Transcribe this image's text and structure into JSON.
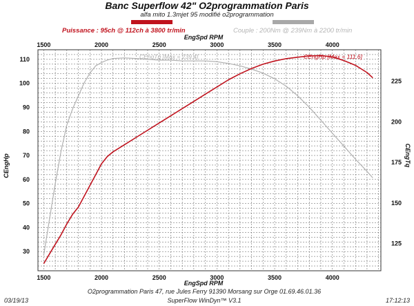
{
  "header": {
    "title": "Banc Superflow 42\" O2programmation Paris",
    "subtitle": "alfa mito 1.3mjet 95 modifié o2programmation",
    "legend_power": "Puissance : 95ch @ 112ch à 3800 tr/min",
    "legend_torque": "Couple : 200Nm @ 239Nm à 2200 tr/min"
  },
  "footer": {
    "address": "O2programmation Paris 47, rue Jules Ferry 91390 Morsang sur Orge 01.69.46.01.36",
    "software": "SuperFlow WinDyn™ V3.1",
    "date": "03/19/13",
    "time": "17:12:13"
  },
  "colors": {
    "power": "#c0121d",
    "torque": "#b0b0b0",
    "legend_power_swatch": "#c0121d",
    "legend_torque_swatch": "#a8a8a8",
    "grid": "#555555"
  },
  "chart_data": {
    "type": "line",
    "x_axis_label_top": "EngSpd RPM",
    "x_axis_label_bottom": "EngSpd RPM",
    "y_left_label": "CEngHp",
    "y_right_label": "CEngTq",
    "xlim": [
      1450,
      4420
    ],
    "x_ticks": [
      1500,
      2000,
      2500,
      3000,
      3500,
      4000
    ],
    "y_left_lim": [
      22,
      114
    ],
    "y_left_ticks": [
      30,
      40,
      50,
      60,
      70,
      80,
      90,
      100,
      110
    ],
    "y_right_lim": [
      108.3,
      244.4
    ],
    "y_right_ticks": [
      125,
      150,
      175,
      200,
      225
    ],
    "series": [
      {
        "name": "CEngHp",
        "axis": "left",
        "annotation": "CEngHp [Max = 111.6]",
        "points": [
          [
            1500,
            25
          ],
          [
            1550,
            29
          ],
          [
            1600,
            33
          ],
          [
            1650,
            37
          ],
          [
            1700,
            41.5
          ],
          [
            1750,
            45.5
          ],
          [
            1800,
            48.5
          ],
          [
            1850,
            53
          ],
          [
            1900,
            57.5
          ],
          [
            1950,
            62
          ],
          [
            2000,
            66.5
          ],
          [
            2050,
            69.5
          ],
          [
            2100,
            71.5
          ],
          [
            2200,
            74.5
          ],
          [
            2300,
            77.5
          ],
          [
            2400,
            80.5
          ],
          [
            2500,
            83.5
          ],
          [
            2600,
            86.5
          ],
          [
            2700,
            89.5
          ],
          [
            2800,
            92.5
          ],
          [
            2900,
            95.5
          ],
          [
            3000,
            98.5
          ],
          [
            3100,
            101.5
          ],
          [
            3200,
            104
          ],
          [
            3300,
            106.2
          ],
          [
            3400,
            108
          ],
          [
            3500,
            109.3
          ],
          [
            3600,
            110.3
          ],
          [
            3700,
            110.9
          ],
          [
            3800,
            111.4
          ],
          [
            3900,
            111.6
          ],
          [
            4000,
            111
          ],
          [
            4100,
            109.5
          ],
          [
            4200,
            107.5
          ],
          [
            4300,
            104.5
          ],
          [
            4350,
            102.3
          ]
        ]
      },
      {
        "name": "CEngTq",
        "axis": "right",
        "annotation": "CEngTq [Max = 239.4]",
        "points": [
          [
            1500,
            118
          ],
          [
            1550,
            140
          ],
          [
            1600,
            162
          ],
          [
            1650,
            182
          ],
          [
            1700,
            198
          ],
          [
            1750,
            208
          ],
          [
            1800,
            216
          ],
          [
            1850,
            224
          ],
          [
            1900,
            230
          ],
          [
            1950,
            234.5
          ],
          [
            2000,
            236.5
          ],
          [
            2050,
            238
          ],
          [
            2100,
            239
          ],
          [
            2200,
            239.4
          ],
          [
            2300,
            239
          ],
          [
            2400,
            238.5
          ],
          [
            2500,
            238
          ],
          [
            2600,
            238
          ],
          [
            2700,
            237.5
          ],
          [
            2800,
            237.5
          ],
          [
            2900,
            237.5
          ],
          [
            3000,
            237
          ],
          [
            3100,
            236
          ],
          [
            3200,
            234.5
          ],
          [
            3300,
            232.5
          ],
          [
            3400,
            230
          ],
          [
            3500,
            226.5
          ],
          [
            3600,
            222
          ],
          [
            3700,
            216
          ],
          [
            3800,
            209
          ],
          [
            3900,
            201
          ],
          [
            4000,
            193
          ],
          [
            4100,
            185
          ],
          [
            4200,
            177
          ],
          [
            4300,
            169.5
          ],
          [
            4350,
            165.5
          ]
        ]
      }
    ]
  }
}
